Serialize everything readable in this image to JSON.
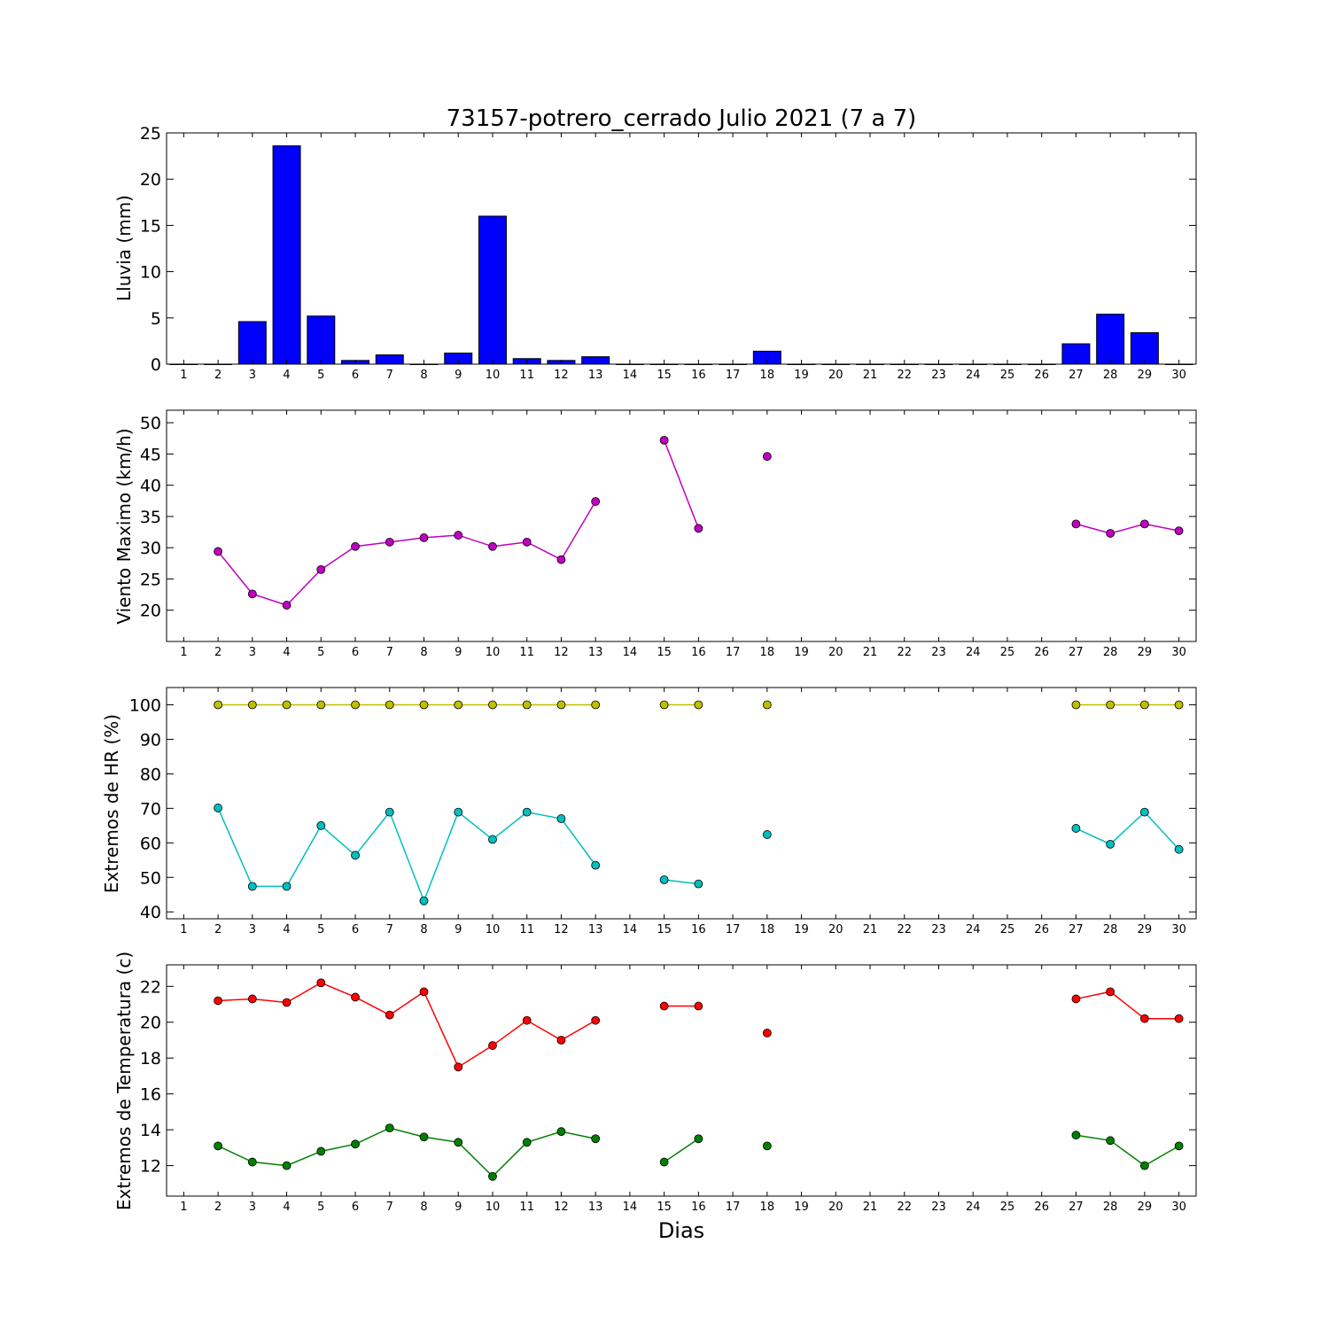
{
  "chart_data": [
    {
      "type": "bar",
      "title": "73157-potrero_cerrado Julio 2021  (7 a 7)",
      "ylabel": "Lluvia (mm)",
      "xlabel": "",
      "xlim": [
        0.5,
        30.5
      ],
      "ylim": [
        0,
        25
      ],
      "yticks": [
        0,
        5,
        10,
        15,
        20,
        25
      ],
      "xticks": [
        1,
        2,
        3,
        4,
        5,
        6,
        7,
        8,
        9,
        10,
        11,
        12,
        13,
        14,
        15,
        16,
        17,
        18,
        19,
        20,
        21,
        22,
        23,
        24,
        25,
        26,
        27,
        28,
        29,
        30
      ],
      "color": "#0000ff",
      "x": [
        1,
        2,
        3,
        4,
        5,
        6,
        7,
        8,
        9,
        10,
        11,
        12,
        13,
        14,
        15,
        16,
        17,
        18,
        19,
        20,
        21,
        22,
        23,
        24,
        25,
        26,
        27,
        28,
        29,
        30
      ],
      "values": [
        0,
        0,
        4.6,
        23.6,
        5.2,
        0.4,
        1.0,
        0,
        1.2,
        16.0,
        0.6,
        0.4,
        0.8,
        0,
        0,
        0,
        0,
        1.4,
        0,
        0,
        0,
        0,
        0,
        0,
        0,
        0,
        2.2,
        5.4,
        3.4,
        0
      ]
    },
    {
      "type": "line",
      "title": "",
      "ylabel": "Viento Maximo (km/h)",
      "xlabel": "",
      "xlim": [
        0.5,
        30.5
      ],
      "ylim": [
        15,
        52
      ],
      "yticks": [
        20,
        25,
        30,
        35,
        40,
        45,
        50
      ],
      "xticks": [
        1,
        2,
        3,
        4,
        5,
        6,
        7,
        8,
        9,
        10,
        11,
        12,
        13,
        14,
        15,
        16,
        17,
        18,
        19,
        20,
        21,
        22,
        23,
        24,
        25,
        26,
        27,
        28,
        29,
        30
      ],
      "series": [
        {
          "color": "#bf00bf",
          "x": [
            1,
            2,
            3,
            4,
            5,
            6,
            7,
            8,
            9,
            10,
            11,
            12,
            13,
            14,
            15,
            16,
            17,
            18,
            19,
            20,
            21,
            22,
            23,
            24,
            25,
            26,
            27,
            28,
            29,
            30
          ],
          "values": [
            null,
            29.4,
            22.6,
            20.8,
            26.5,
            30.2,
            30.9,
            31.6,
            32.0,
            30.2,
            30.9,
            28.1,
            37.4,
            null,
            47.2,
            33.1,
            null,
            44.6,
            null,
            null,
            null,
            null,
            null,
            null,
            null,
            null,
            33.8,
            32.3,
            33.8,
            32.7
          ]
        }
      ]
    },
    {
      "type": "line",
      "title": "",
      "ylabel": "Extremos de HR (%)",
      "xlabel": "",
      "xlim": [
        0.5,
        30.5
      ],
      "ylim": [
        38,
        105
      ],
      "yticks": [
        40,
        50,
        60,
        70,
        80,
        90,
        100
      ],
      "xticks": [
        1,
        2,
        3,
        4,
        5,
        6,
        7,
        8,
        9,
        10,
        11,
        12,
        13,
        14,
        15,
        16,
        17,
        18,
        19,
        20,
        21,
        22,
        23,
        24,
        25,
        26,
        27,
        28,
        29,
        30
      ],
      "series": [
        {
          "color": "#bfbf00",
          "x": [
            1,
            2,
            3,
            4,
            5,
            6,
            7,
            8,
            9,
            10,
            11,
            12,
            13,
            14,
            15,
            16,
            17,
            18,
            19,
            20,
            21,
            22,
            23,
            24,
            25,
            26,
            27,
            28,
            29,
            30
          ],
          "values": [
            null,
            100,
            100,
            100,
            100,
            100,
            100,
            100,
            100,
            100,
            100,
            100,
            100,
            null,
            100,
            100,
            null,
            100,
            null,
            null,
            null,
            null,
            null,
            null,
            null,
            null,
            100,
            100,
            100,
            100
          ]
        },
        {
          "color": "#00bfbf",
          "x": [
            1,
            2,
            3,
            4,
            5,
            6,
            7,
            8,
            9,
            10,
            11,
            12,
            13,
            14,
            15,
            16,
            17,
            18,
            19,
            20,
            21,
            22,
            23,
            24,
            25,
            26,
            27,
            28,
            29,
            30
          ],
          "values": [
            null,
            70.1,
            47.4,
            47.4,
            65.0,
            56.4,
            68.9,
            43.2,
            68.9,
            61.0,
            68.9,
            67.0,
            53.5,
            null,
            49.3,
            48.1,
            null,
            62.4,
            null,
            null,
            null,
            null,
            null,
            null,
            null,
            null,
            64.2,
            59.6,
            68.9,
            58.1
          ]
        }
      ]
    },
    {
      "type": "line",
      "title": "",
      "ylabel": "Extremos de Temperatura (c)",
      "xlabel": "Dias",
      "xlim": [
        0.5,
        30.5
      ],
      "ylim": [
        10.3,
        23.2
      ],
      "yticks": [
        12,
        14,
        16,
        18,
        20,
        22
      ],
      "xticks": [
        1,
        2,
        3,
        4,
        5,
        6,
        7,
        8,
        9,
        10,
        11,
        12,
        13,
        14,
        15,
        16,
        17,
        18,
        19,
        20,
        21,
        22,
        23,
        24,
        25,
        26,
        27,
        28,
        29,
        30
      ],
      "series": [
        {
          "color": "#ff0000",
          "x": [
            1,
            2,
            3,
            4,
            5,
            6,
            7,
            8,
            9,
            10,
            11,
            12,
            13,
            14,
            15,
            16,
            17,
            18,
            19,
            20,
            21,
            22,
            23,
            24,
            25,
            26,
            27,
            28,
            29,
            30
          ],
          "values": [
            null,
            21.2,
            21.3,
            21.1,
            22.2,
            21.4,
            20.4,
            21.7,
            17.5,
            18.7,
            20.1,
            19.0,
            20.1,
            null,
            20.9,
            20.9,
            null,
            19.4,
            null,
            null,
            null,
            null,
            null,
            null,
            null,
            null,
            21.3,
            21.7,
            20.2,
            20.2
          ]
        },
        {
          "color": "#008000",
          "x": [
            1,
            2,
            3,
            4,
            5,
            6,
            7,
            8,
            9,
            10,
            11,
            12,
            13,
            14,
            15,
            16,
            17,
            18,
            19,
            20,
            21,
            22,
            23,
            24,
            25,
            26,
            27,
            28,
            29,
            30
          ],
          "values": [
            null,
            13.1,
            12.2,
            12.0,
            12.8,
            13.2,
            14.1,
            13.6,
            13.3,
            11.4,
            13.3,
            13.9,
            13.5,
            null,
            12.2,
            13.5,
            null,
            13.1,
            null,
            null,
            null,
            null,
            null,
            null,
            null,
            null,
            13.7,
            13.4,
            12.0,
            13.1
          ]
        }
      ]
    }
  ]
}
